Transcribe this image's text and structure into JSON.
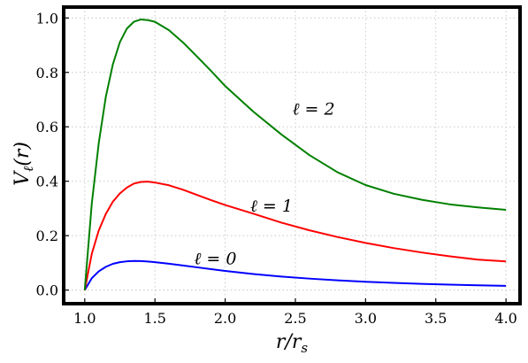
{
  "chart_data": {
    "type": "line",
    "title": "",
    "xlabel": "r/r_s",
    "ylabel": "V_ℓ(r)",
    "xlim": [
      0.85,
      4.1
    ],
    "ylim": [
      -0.05,
      1.04
    ],
    "grid": true,
    "x_ticks": [
      "1.0",
      "1.5",
      "2.0",
      "2.5",
      "3.0",
      "3.5",
      "4.0"
    ],
    "y_ticks": [
      "0.0",
      "0.2",
      "0.4",
      "0.6",
      "0.8",
      "1.0"
    ],
    "x": [
      1.0,
      1.05,
      1.1,
      1.15,
      1.2,
      1.25,
      1.3,
      1.35,
      1.4,
      1.45,
      1.5,
      1.6,
      1.7,
      1.8,
      1.9,
      2.0,
      2.2,
      2.4,
      2.6,
      2.8,
      3.0,
      3.2,
      3.4,
      3.6,
      3.8,
      4.0
    ],
    "series": [
      {
        "label": "ℓ=0",
        "color": "#0000ff",
        "values": [
          0.0,
          0.0435,
          0.0689,
          0.0855,
          0.0964,
          0.1024,
          0.1056,
          0.107,
          0.1064,
          0.1049,
          0.1027,
          0.097,
          0.0903,
          0.0836,
          0.077,
          0.0703,
          0.059,
          0.0498,
          0.0421,
          0.0358,
          0.0306,
          0.0264,
          0.0228,
          0.02,
          0.0176,
          0.0156
        ]
      },
      {
        "label": "ℓ=1",
        "color": "#ff0000",
        "values": [
          0.0,
          0.133,
          0.2193,
          0.2797,
          0.3247,
          0.3552,
          0.3768,
          0.3912,
          0.3975,
          0.3986,
          0.3951,
          0.3851,
          0.3687,
          0.3496,
          0.3305,
          0.3125,
          0.281,
          0.248,
          0.2196,
          0.195,
          0.1733,
          0.1544,
          0.1381,
          0.1241,
          0.1117,
          0.1055
        ]
      },
      {
        "label": "ℓ=2",
        "color": "#008000",
        "values": [
          0.0,
          0.317,
          0.541,
          0.71,
          0.829,
          0.911,
          0.961,
          0.986,
          0.9945,
          0.992,
          0.986,
          0.955,
          0.91,
          0.858,
          0.805,
          0.75,
          0.656,
          0.572,
          0.496,
          0.433,
          0.386,
          0.354,
          0.332,
          0.315,
          0.304,
          0.295
        ]
      }
    ],
    "annotations": [
      {
        "text": "ℓ = 2",
        "x": 2.63,
        "y": 0.645
      },
      {
        "text": "ℓ = 1",
        "x": 2.33,
        "y": 0.288
      },
      {
        "text": "ℓ = 0",
        "x": 1.93,
        "y": 0.095
      }
    ]
  }
}
